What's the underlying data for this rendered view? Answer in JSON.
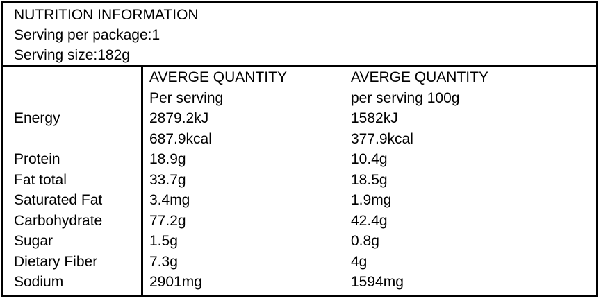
{
  "table": {
    "title": "NUTRITION INFORMATION",
    "serving_per_package": "Serving per package:1",
    "serving_size": "Serving size:182g",
    "columns": {
      "per_serving": [
        "AVERGE QUANTITY",
        "Per serving"
      ],
      "per_100g": [
        "AVERGE QUANTITY",
        "per serving 100g"
      ]
    },
    "rows": [
      {
        "label": "Energy",
        "per_serving": "2879.2kJ",
        "per_100g": "1582kJ"
      },
      {
        "label": "",
        "per_serving": "687.9kcal",
        "per_100g": "377.9kcal"
      },
      {
        "label": "Protein",
        "per_serving": "18.9g",
        "per_100g": "10.4g"
      },
      {
        "label": "Fat total",
        "per_serving": "33.7g",
        "per_100g": "18.5g"
      },
      {
        "label": "Saturated Fat",
        "per_serving": "3.4mg",
        "per_100g": "1.9mg"
      },
      {
        "label": "Carbohydrate",
        "per_serving": "77.2g",
        "per_100g": "42.4g"
      },
      {
        "label": "Sugar",
        "per_serving": "1.5g",
        "per_100g": "0.8g"
      },
      {
        "label": "Dietary Fiber",
        "per_serving": "7.3g",
        "per_100g": "4g"
      },
      {
        "label": "Sodium",
        "per_serving": "2901mg",
        "per_100g": "1594mg"
      }
    ],
    "colors": {
      "border": "#000000",
      "background": "#ffffff",
      "text": "#000000"
    }
  }
}
